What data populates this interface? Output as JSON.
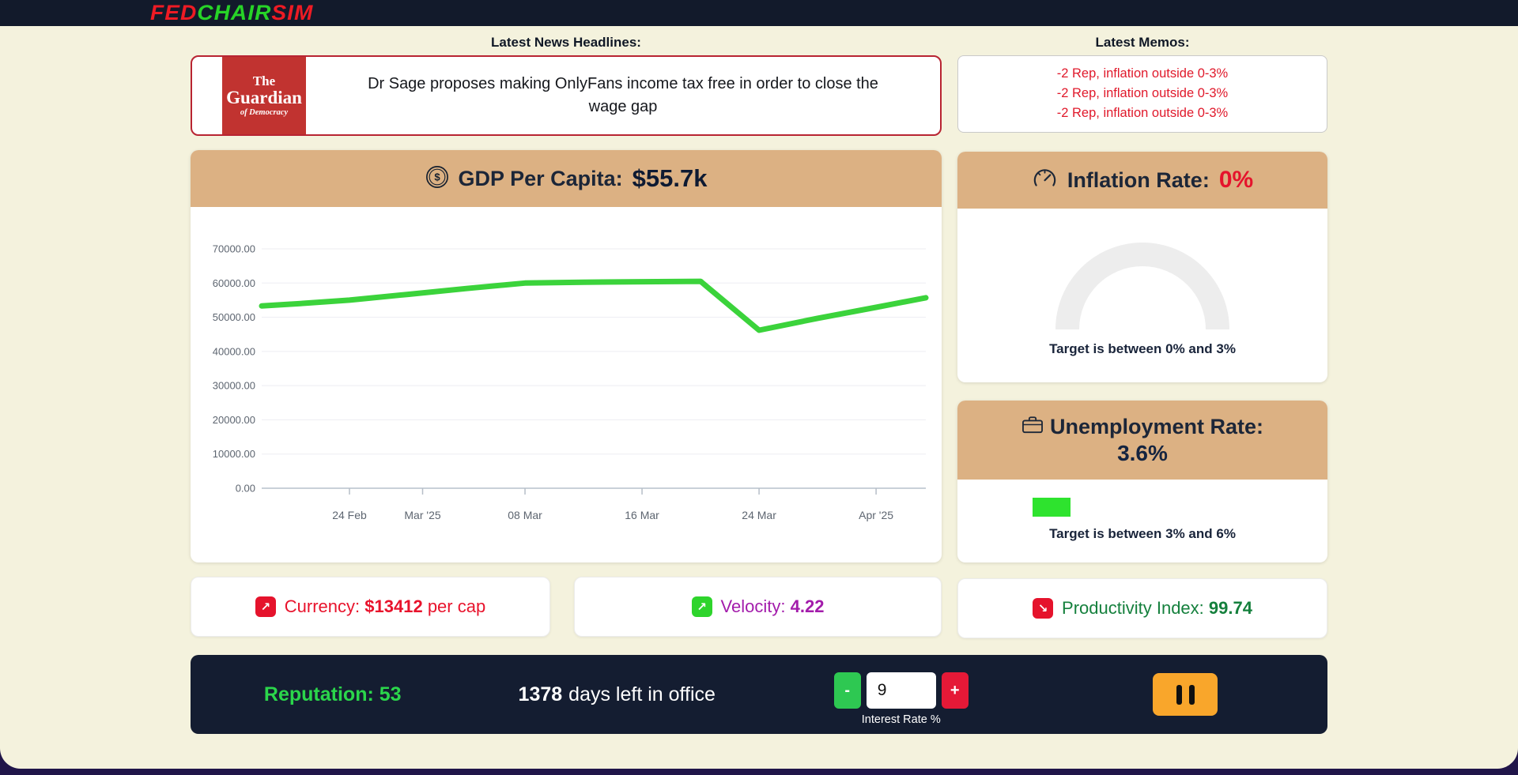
{
  "header": {
    "logo": {
      "fed": "FED",
      "chair": "CHAIR",
      "sim": "SIM"
    }
  },
  "news": {
    "title": "Latest News Headlines:",
    "source": {
      "line1": "The",
      "line2": "Guardian",
      "line3": "of Democracy"
    },
    "headline": "Dr Sage proposes making OnlyFans income tax free in order to close the wage gap"
  },
  "memos": {
    "title": "Latest Memos:",
    "items": [
      "-2 Rep, inflation outside 0-3%",
      "-2 Rep, inflation outside 0-3%",
      "-2 Rep, inflation outside 0-3%"
    ]
  },
  "gdp": {
    "label": "GDP Per Capita:",
    "value": "$55.7k"
  },
  "chart_data": {
    "type": "line",
    "title": "GDP Per Capita ($)",
    "xlabel": "",
    "ylabel": "",
    "ylim": [
      0,
      70000
    ],
    "y_ticks": [
      70000,
      60000,
      50000,
      40000,
      30000,
      20000,
      10000,
      0
    ],
    "x_domain_days": [
      0,
      45.4
    ],
    "x_ticks": [
      {
        "day": 6,
        "label": "24 Feb"
      },
      {
        "day": 11,
        "label": "Mar '25"
      },
      {
        "day": 18,
        "label": "08 Mar"
      },
      {
        "day": 26,
        "label": "16 Mar"
      },
      {
        "day": 34,
        "label": "24 Mar"
      },
      {
        "day": 42,
        "label": "Apr '25"
      }
    ],
    "series": [
      {
        "name": "GDP per capita",
        "color": "#3bd33b",
        "points_day_value": [
          [
            0,
            53300
          ],
          [
            3,
            54100
          ],
          [
            6,
            55000
          ],
          [
            10,
            56700
          ],
          [
            14,
            58400
          ],
          [
            18,
            60000
          ],
          [
            22,
            60250
          ],
          [
            26,
            60400
          ],
          [
            30,
            60500
          ],
          [
            34,
            46200
          ],
          [
            38,
            49700
          ],
          [
            42,
            52900
          ],
          [
            45.4,
            55700
          ]
        ]
      }
    ],
    "grid": true,
    "legend": false
  },
  "inflation": {
    "label": "Inflation Rate:",
    "value": "0%",
    "target": "Target is between 0% and 3%"
  },
  "unemployment": {
    "label": "Unemployment Rate:",
    "value": "3.6%",
    "target": "Target is between 3% and 6%"
  },
  "stats": {
    "currency": {
      "icon": "↗",
      "label": "Currency:",
      "value": "$13412",
      "suffix": "per cap"
    },
    "velocity": {
      "icon": "↗",
      "label": "Velocity:",
      "value": "4.22"
    },
    "productivity": {
      "icon": "↘",
      "label": "Productivity Index:",
      "value": "99.74"
    }
  },
  "bottom_bar": {
    "reputation_label": "Reputation:",
    "reputation_value": "53",
    "days_value": "1378",
    "days_label": "days left in office",
    "stepper": {
      "decrease": "-",
      "increase": "+",
      "value": "9",
      "label": "Interest Rate %"
    }
  },
  "colors": {
    "accent_red": "#e5132c",
    "accent_green": "#2ed42c",
    "chart_line_green": "#3bd33b",
    "tan_header": "#dcb183",
    "navy": "#141d31",
    "velocity_purple": "#a31cab",
    "productivity_green": "#15803d",
    "pause_orange": "#f9a62b",
    "page_cream": "#f4f2dd"
  }
}
